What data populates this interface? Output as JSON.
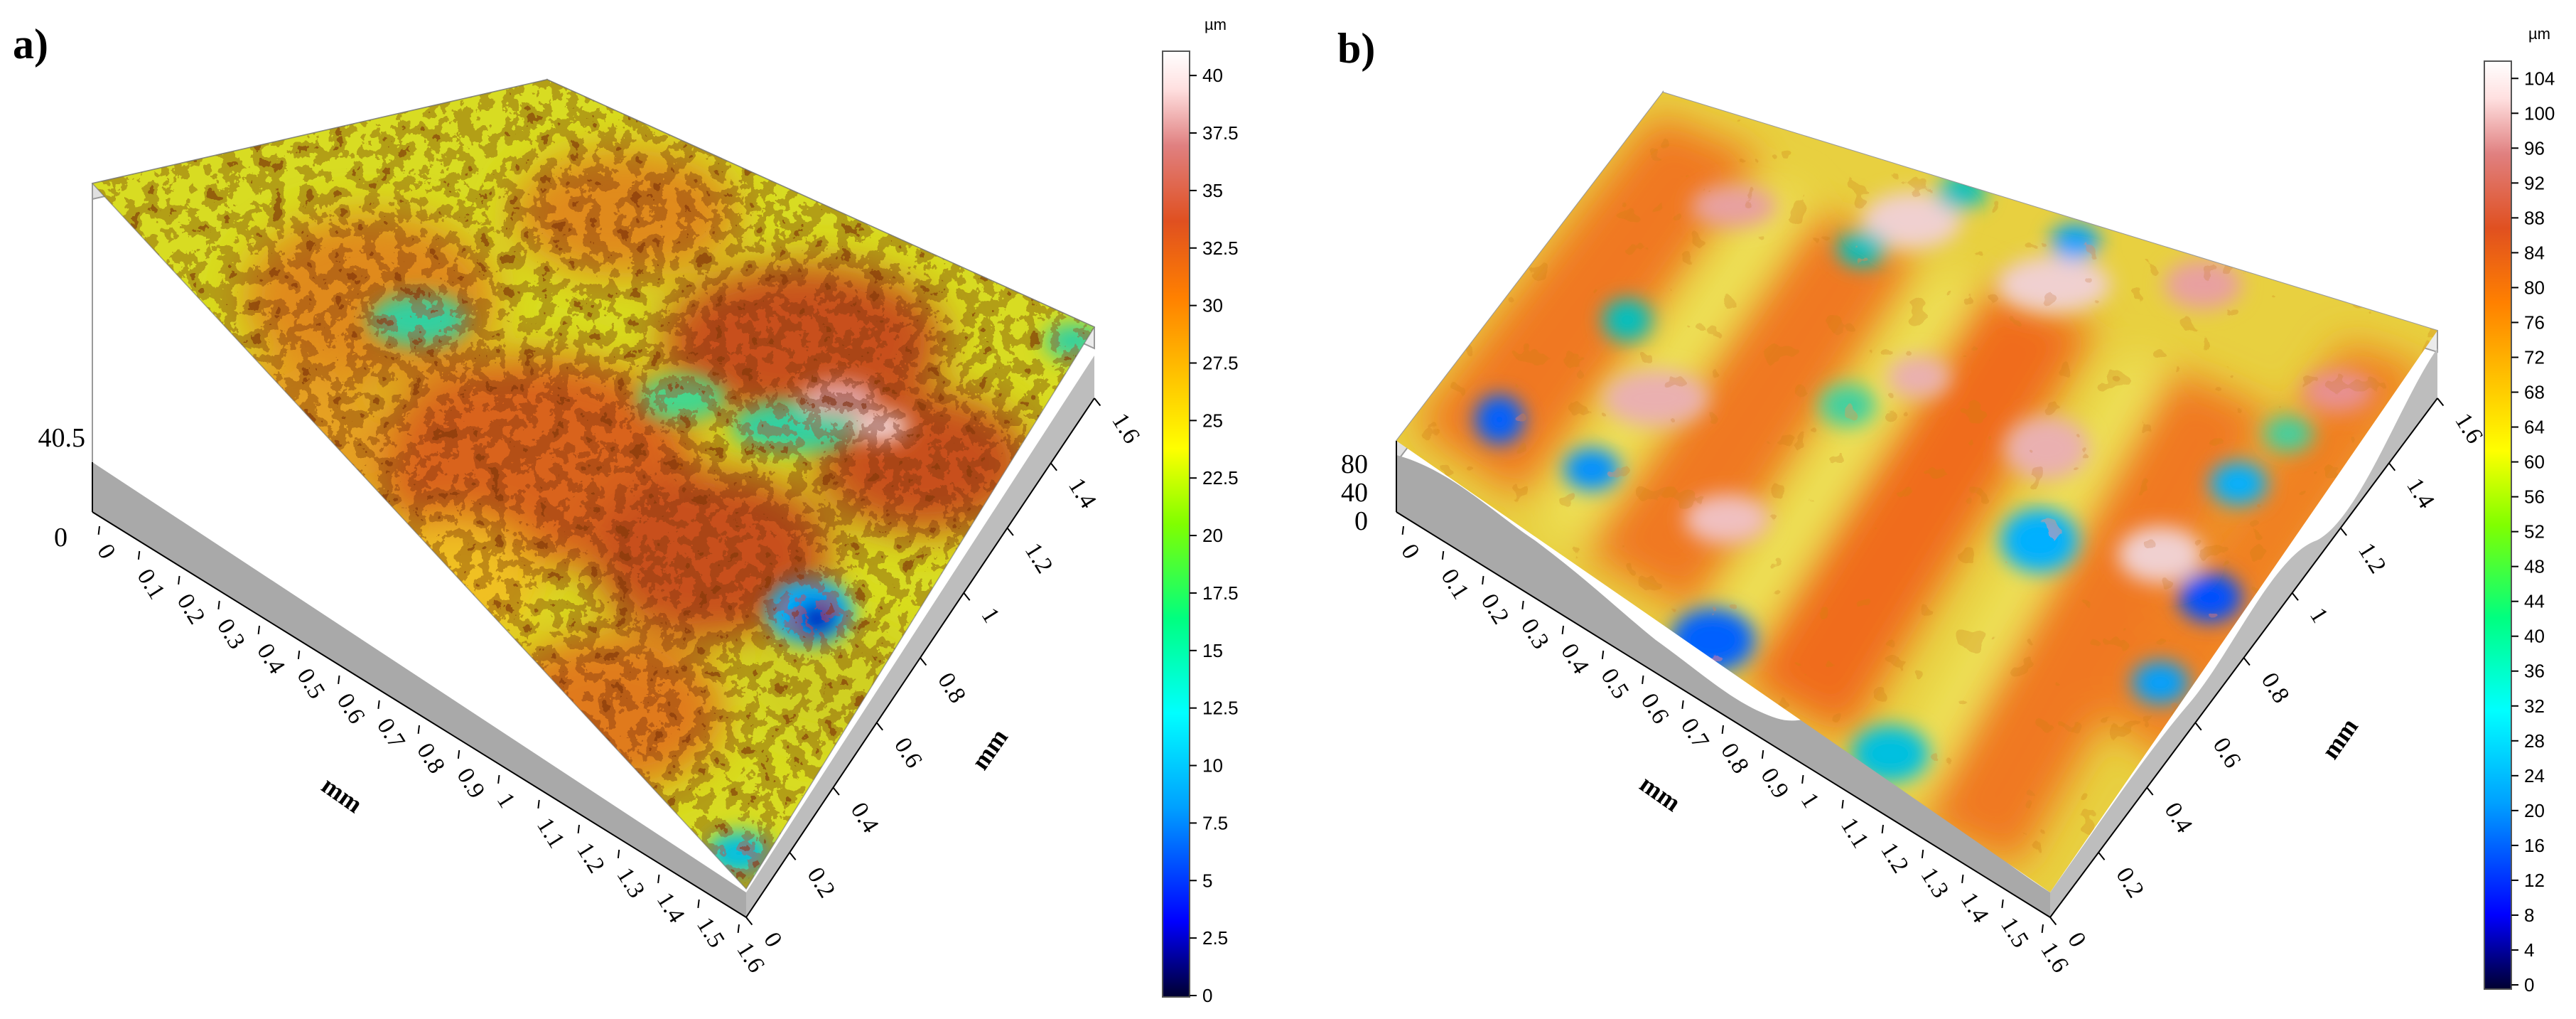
{
  "chart_data": [
    {
      "type": "heatmap",
      "panel_label": "a)",
      "x_axis_label": "mm",
      "y_axis_label": "mm",
      "x_ticks": [
        "0",
        "0.1",
        "0.2",
        "0.3",
        "0.4",
        "0.5",
        "0.6",
        "0.7",
        "0.8",
        "0.9",
        "1",
        "1.1",
        "1.2",
        "1.3",
        "1.4",
        "1.5",
        "1.6"
      ],
      "y_ticks": [
        "0",
        "0.2",
        "0.4",
        "0.6",
        "0.8",
        "1",
        "1.2",
        "1.4",
        "1.6"
      ],
      "z_ticks": [
        "40.5",
        "0"
      ],
      "colorbar": {
        "unit": "µm",
        "range": [
          0,
          40.5
        ],
        "ticks": [
          "0",
          "2.5",
          "5",
          "7.5",
          "10",
          "12.5",
          "15",
          "17.5",
          "20",
          "22.5",
          "25",
          "27.5",
          "30",
          "32.5",
          "35",
          "37.5",
          "40"
        ],
        "colors": [
          "#000030",
          "#0000ff",
          "#00a0ff",
          "#00ffff",
          "#00ff80",
          "#80ff00",
          "#ffff00",
          "#ffc000",
          "#ff8000",
          "#e05020",
          "#e08080",
          "#ffe0e0",
          "#ffffff"
        ]
      }
    },
    {
      "type": "heatmap",
      "panel_label": "b)",
      "x_axis_label": "mm",
      "y_axis_label": "mm",
      "x_ticks": [
        "0",
        "0.1",
        "0.2",
        "0.3",
        "0.4",
        "0.5",
        "0.6",
        "0.7",
        "0.8",
        "0.9",
        "1",
        "1.1",
        "1.2",
        "1.3",
        "1.4",
        "1.5",
        "1.6"
      ],
      "y_ticks": [
        "0",
        "0.2",
        "0.4",
        "0.6",
        "0.8",
        "1",
        "1.2",
        "1.4",
        "1.6"
      ],
      "z_ticks": [
        "80",
        "40",
        "0"
      ],
      "colorbar": {
        "unit": "µm",
        "range": [
          0,
          105
        ],
        "ticks": [
          "0",
          "4",
          "8",
          "12",
          "16",
          "20",
          "24",
          "28",
          "32",
          "36",
          "40",
          "44",
          "48",
          "52",
          "56",
          "60",
          "64",
          "68",
          "72",
          "76",
          "80",
          "84",
          "88",
          "92",
          "96",
          "100",
          "104"
        ],
        "colors": [
          "#000030",
          "#0000ff",
          "#00a0ff",
          "#00ffff",
          "#00ff80",
          "#80ff00",
          "#ffff00",
          "#ffc000",
          "#ff8000",
          "#e05020",
          "#e08080",
          "#ffe0e0",
          "#ffffff"
        ]
      }
    }
  ]
}
